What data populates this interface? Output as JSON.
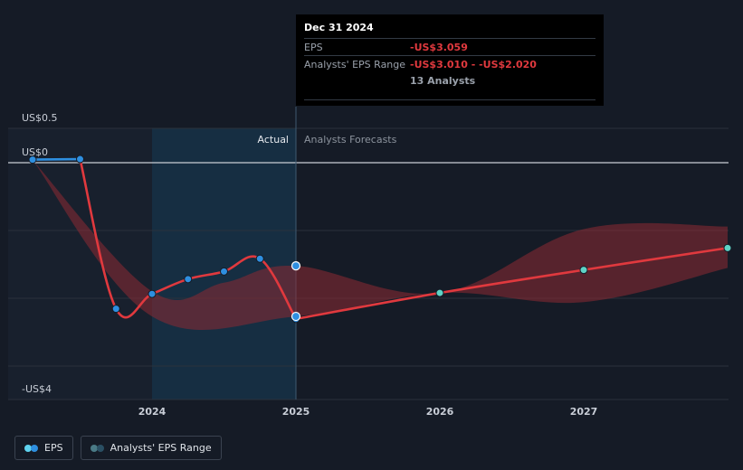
{
  "chart_data": {
    "type": "line",
    "y_ticks": [
      {
        "label": "US$0.5",
        "value": 0.5
      },
      {
        "label": "US$0",
        "value": 0
      },
      {
        "label": "-US$4",
        "value": -4
      }
    ],
    "x_ticks": [
      {
        "label": "2024",
        "value": 2024.0
      },
      {
        "label": "2025",
        "value": 2025.0
      },
      {
        "label": "2026",
        "value": 2026.0
      },
      {
        "label": "2027",
        "value": 2027.0
      }
    ],
    "xlim": [
      2023.0,
      2028.0
    ],
    "ylim": [
      -4.17,
      0.5
    ],
    "region_labels": {
      "actual": "Actual",
      "forecast": "Analysts Forecasts"
    },
    "divider_x": 2025.0,
    "highlight_range": [
      2024.0,
      2025.0
    ],
    "series": [
      {
        "name": "EPS",
        "kind": "actual",
        "color": "#2e8fe0",
        "points": [
          {
            "x": 2023.17,
            "y": 0.06
          },
          {
            "x": 2023.5,
            "y": 0.07
          },
          {
            "x": 2023.75,
            "y": -2.86
          },
          {
            "x": 2024.0,
            "y": -2.57
          },
          {
            "x": 2024.25,
            "y": -2.28
          },
          {
            "x": 2024.5,
            "y": -2.13
          },
          {
            "x": 2024.75,
            "y": -1.88
          },
          {
            "x": 2025.0,
            "y": -3.059
          }
        ]
      },
      {
        "name": "EPS",
        "kind": "forecast",
        "color": "#e0393e",
        "points": [
          {
            "x": 2025.0,
            "y": -3.059
          },
          {
            "x": 2026.0,
            "y": -2.55
          },
          {
            "x": 2027.0,
            "y": -2.1
          },
          {
            "x": 2028.0,
            "y": -1.67
          }
        ]
      }
    ],
    "range_band": {
      "name": "Analysts' EPS Range",
      "color": "#8e2a33",
      "upper": [
        {
          "x": 2023.17,
          "y": 0.05
        },
        {
          "x": 2024.0,
          "y": -2.52
        },
        {
          "x": 2024.5,
          "y": -2.35
        },
        {
          "x": 2025.0,
          "y": -2.02
        },
        {
          "x": 2026.0,
          "y": -2.55
        },
        {
          "x": 2027.0,
          "y": -1.3
        },
        {
          "x": 2028.0,
          "y": -1.25
        }
      ],
      "lower": [
        {
          "x": 2028.0,
          "y": -2.06
        },
        {
          "x": 2027.0,
          "y": -2.73
        },
        {
          "x": 2026.0,
          "y": -2.55
        },
        {
          "x": 2025.0,
          "y": -3.01
        },
        {
          "x": 2024.0,
          "y": -3.01
        },
        {
          "x": 2023.17,
          "y": 0.05
        }
      ]
    },
    "highlight_point": {
      "x": 2025.0,
      "y": -2.02
    }
  },
  "tooltip": {
    "date": "Dec 31 2024",
    "rows": [
      {
        "label": "EPS",
        "value": "-US$3.059"
      },
      {
        "label": "Analysts' EPS Range",
        "value": "-US$3.010 - -US$2.020"
      },
      {
        "label": "",
        "value": "13 Analysts"
      }
    ]
  },
  "legend": [
    {
      "label": "EPS",
      "colors": [
        "#5fd3ef",
        "#2e8fe0"
      ]
    },
    {
      "label": "Analysts' EPS Range",
      "colors": [
        "#4a7a86",
        "#2a4f63"
      ]
    }
  ],
  "colors": {
    "background": "#151b26",
    "grid": "#2a313c",
    "zero_line": "#c9ced6",
    "actual_panel": "#1b2533",
    "highlight_panel": "#16334a",
    "forecast_marker": "#5fd3c6"
  }
}
